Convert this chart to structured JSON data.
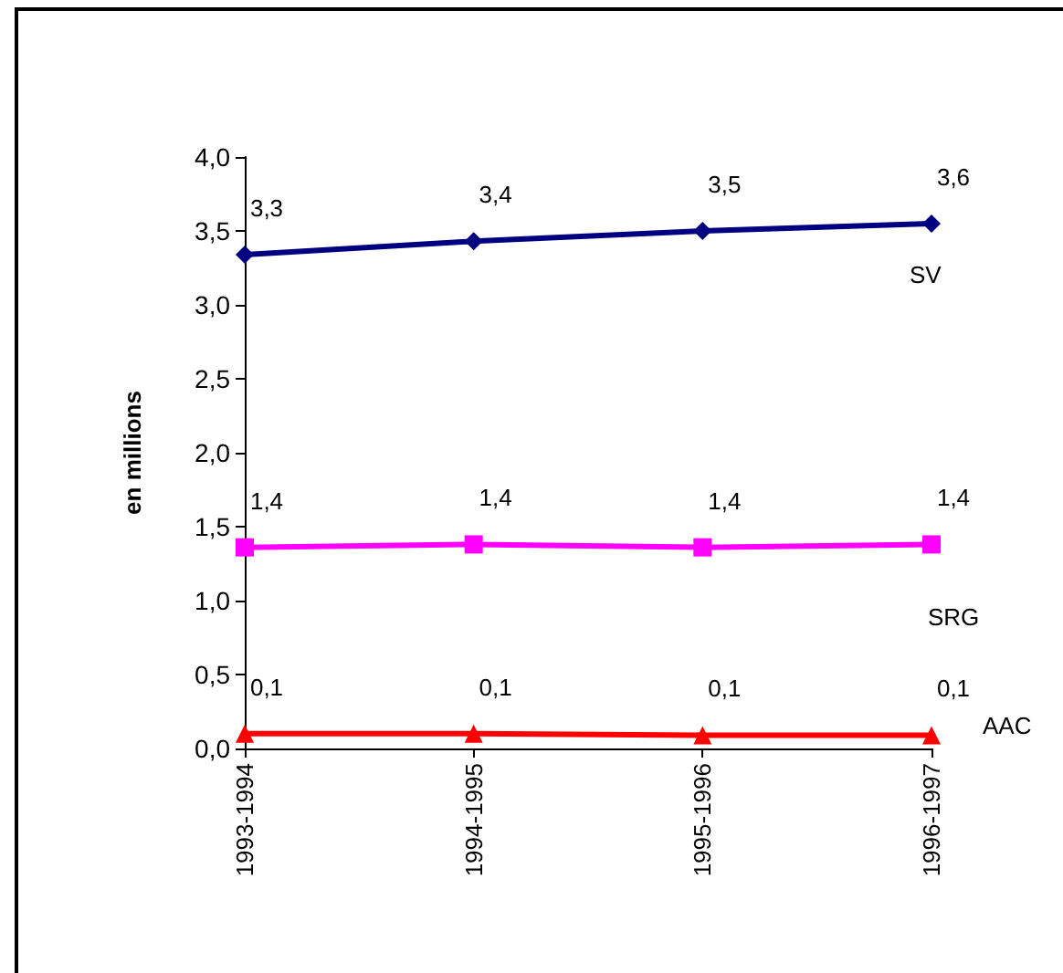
{
  "chart_data": {
    "type": "line",
    "ylabel": "en millions",
    "categories": [
      "1993-1994",
      "1994-1995",
      "1995-1996",
      "1996-1997"
    ],
    "series": [
      {
        "name": "SV",
        "color": "#000080",
        "marker": "diamond",
        "values": [
          3.34,
          3.43,
          3.5,
          3.55
        ],
        "value_labels": [
          "3,3",
          "3,4",
          "3,5",
          "3,6"
        ]
      },
      {
        "name": "SRG",
        "color": "#ff00ff",
        "marker": "square",
        "values": [
          1.36,
          1.38,
          1.36,
          1.38
        ],
        "value_labels": [
          "1,4",
          "1,4",
          "1,4",
          "1,4"
        ]
      },
      {
        "name": "AAC",
        "color": "#ff0000",
        "marker": "triangle",
        "values": [
          0.1,
          0.1,
          0.09,
          0.09
        ],
        "value_labels": [
          "0,1",
          "0,1",
          "0,1",
          "0,1"
        ]
      }
    ],
    "ylim": [
      0,
      4
    ],
    "yticks": [
      {
        "value": 0,
        "label": "0,0"
      },
      {
        "value": 0.5,
        "label": "0,5"
      },
      {
        "value": 1,
        "label": "1,0"
      },
      {
        "value": 1.5,
        "label": "1,5"
      },
      {
        "value": 2,
        "label": "2,0"
      },
      {
        "value": 2.5,
        "label": "2,5"
      },
      {
        "value": 3,
        "label": "3,0"
      },
      {
        "value": 3.5,
        "label": "3,5"
      },
      {
        "value": 4,
        "label": "4,0"
      }
    ],
    "grid": false,
    "legend": false
  }
}
